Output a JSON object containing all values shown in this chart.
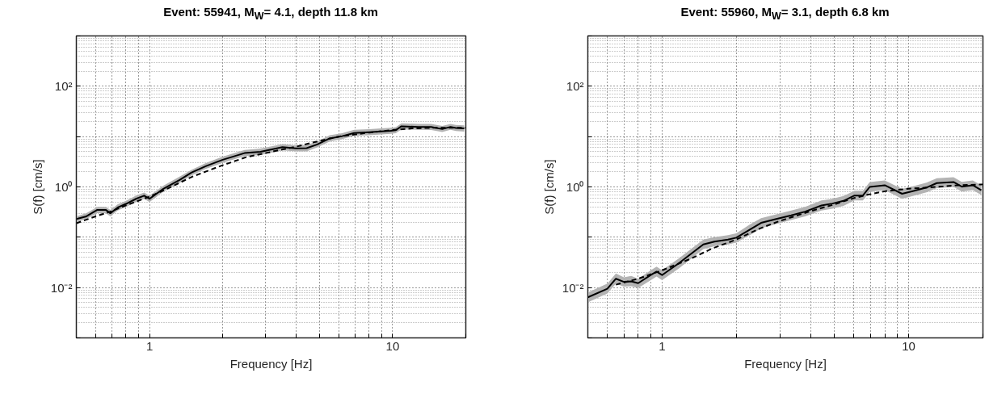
{
  "chart_data": [
    {
      "type": "line",
      "title": "Event: 55941, M$_{W}$= 4.1, depth 11.8 km",
      "xlabel": "Frequency [Hz]",
      "ylabel": "S(f) [cm/s]",
      "log": "xy",
      "grid": true,
      "xlim": [
        0.5,
        20
      ],
      "ylim": [
        0.001,
        1000
      ],
      "xticks": [
        {
          "value": 0.5,
          "label": null
        },
        {
          "value": 0.6,
          "label": null
        },
        {
          "value": 0.7,
          "label": null
        },
        {
          "value": 0.8,
          "label": null
        },
        {
          "value": 0.9,
          "label": null
        },
        1,
        {
          "value": 2,
          "label": null
        },
        {
          "value": 3,
          "label": null
        },
        {
          "value": 4,
          "label": null
        },
        {
          "value": 5,
          "label": null
        },
        {
          "value": 6,
          "label": null
        },
        {
          "value": 7,
          "label": null
        },
        {
          "value": 8,
          "label": null
        },
        {
          "value": 9,
          "label": null
        },
        10,
        {
          "value": 20,
          "label": null
        }
      ],
      "yticks": [
        {
          "value": 0.001,
          "label": null
        },
        {
          "value": 0.01,
          "label": "10⁻²"
        },
        {
          "value": 0.1,
          "label": null
        },
        {
          "value": 1,
          "label": "10⁰"
        },
        {
          "value": 10,
          "label": null
        },
        {
          "value": 100,
          "label": "10²"
        },
        {
          "value": 1000,
          "label": null
        }
      ],
      "series": [
        {
          "color": "#000000",
          "line_style": "solid",
          "x": [
            0.5,
            0.55,
            0.61,
            0.66,
            0.69,
            0.74,
            0.8,
            0.88,
            0.95,
            1.0,
            1.14,
            1.33,
            1.49,
            1.71,
            2.0,
            2.46,
            2.86,
            3.52,
            4.0,
            4.43,
            4.9,
            5.51,
            6.2,
            6.94,
            8.0,
            9.82,
            10.3,
            10.87,
            12.7,
            14.4,
            16.0,
            17.3,
            18.2,
            19.7
          ],
          "values": [
            0.23,
            0.26,
            0.35,
            0.35,
            0.3,
            0.39,
            0.46,
            0.58,
            0.67,
            0.58,
            0.92,
            1.38,
            1.94,
            2.6,
            3.46,
            4.7,
            5.0,
            6.15,
            5.86,
            5.9,
            7.0,
            9.2,
            10.2,
            11.8,
            12.2,
            13.0,
            13.4,
            16.0,
            15.6,
            15.5,
            14.1,
            15.6,
            14.8,
            14.5
          ],
          "lower": [
            0.2,
            0.23,
            0.3,
            0.3,
            0.26,
            0.34,
            0.4,
            0.5,
            0.58,
            0.5,
            0.8,
            1.2,
            1.7,
            2.3,
            3.0,
            4.1,
            4.3,
            5.3,
            5.1,
            5.1,
            6.1,
            8.0,
            8.9,
            10.3,
            10.6,
            11.3,
            11.7,
            13.9,
            13.6,
            13.5,
            12.3,
            13.6,
            12.9,
            12.6
          ],
          "upper": [
            0.26,
            0.3,
            0.4,
            0.4,
            0.35,
            0.45,
            0.53,
            0.67,
            0.77,
            0.67,
            1.06,
            1.6,
            2.2,
            3.0,
            4.0,
            5.4,
            5.8,
            7.1,
            6.7,
            6.8,
            8.0,
            10.6,
            11.7,
            13.6,
            14,
            15,
            15.4,
            18.4,
            17.9,
            17.8,
            16.2,
            17.9,
            17,
            16.7
          ]
        },
        {
          "color": "#000000",
          "line_style": "dashed",
          "x": [
            0.5,
            0.6,
            0.7,
            0.8,
            1.0,
            1.2,
            1.5,
            2.0,
            2.5,
            3.0,
            4.0,
            5.0,
            6.0,
            8.0,
            10.0,
            12.0,
            15.0,
            20.0
          ],
          "values": [
            0.19,
            0.26,
            0.33,
            0.43,
            0.64,
            0.95,
            1.6,
            2.7,
            3.9,
            4.7,
            6.3,
            8.2,
            10,
            12,
            13.5,
            14.5,
            15,
            15
          ]
        }
      ]
    },
    {
      "type": "line",
      "title": "Event: 55960, M$_{W}$= 3.1, depth 6.8 km",
      "xlabel": "Frequency [Hz]",
      "ylabel": "S(f) [cm/s]",
      "log": "xy",
      "grid": true,
      "xlim": [
        0.5,
        20
      ],
      "ylim": [
        0.001,
        1000
      ],
      "xticks": [
        {
          "value": 0.5,
          "label": null
        },
        {
          "value": 0.6,
          "label": null
        },
        {
          "value": 0.7,
          "label": null
        },
        {
          "value": 0.8,
          "label": null
        },
        {
          "value": 0.9,
          "label": null
        },
        1,
        {
          "value": 2,
          "label": null
        },
        {
          "value": 3,
          "label": null
        },
        {
          "value": 4,
          "label": null
        },
        {
          "value": 5,
          "label": null
        },
        {
          "value": 6,
          "label": null
        },
        {
          "value": 7,
          "label": null
        },
        {
          "value": 8,
          "label": null
        },
        {
          "value": 9,
          "label": null
        },
        10,
        {
          "value": 20,
          "label": null
        }
      ],
      "yticks": [
        {
          "value": 0.001,
          "label": null
        },
        {
          "value": 0.01,
          "label": "10⁻²"
        },
        {
          "value": 0.1,
          "label": null
        },
        {
          "value": 1,
          "label": "10⁰"
        },
        {
          "value": 10,
          "label": null
        },
        {
          "value": 100,
          "label": "10²"
        },
        {
          "value": 1000,
          "label": null
        }
      ],
      "series": [
        {
          "color": "#000000",
          "line_style": "solid",
          "x": [
            0.5,
            0.6,
            0.65,
            0.7,
            0.75,
            0.8,
            0.9,
            0.95,
            1.0,
            1.17,
            1.29,
            1.47,
            1.63,
            1.85,
            2.0,
            2.27,
            2.52,
            2.86,
            3.34,
            3.8,
            4.43,
            4.9,
            5.44,
            6.03,
            6.52,
            6.95,
            8.0,
            9.4,
            10.55,
            11.8,
            13.0,
            15.2,
            16.4,
            18.2,
            19.7
          ],
          "values": [
            0.0064,
            0.0095,
            0.015,
            0.013,
            0.0133,
            0.0122,
            0.0177,
            0.0207,
            0.0177,
            0.0305,
            0.044,
            0.072,
            0.082,
            0.09,
            0.098,
            0.142,
            0.193,
            0.226,
            0.272,
            0.323,
            0.428,
            0.467,
            0.528,
            0.674,
            0.674,
            1.0,
            1.08,
            0.73,
            0.84,
            0.97,
            1.19,
            1.25,
            1.01,
            1.08,
            0.86
          ],
          "lower": [
            0.0051,
            0.0076,
            0.012,
            0.0104,
            0.0106,
            0.0098,
            0.014,
            0.0166,
            0.014,
            0.024,
            0.035,
            0.058,
            0.066,
            0.072,
            0.078,
            0.11,
            0.15,
            0.18,
            0.22,
            0.26,
            0.34,
            0.37,
            0.42,
            0.54,
            0.54,
            0.8,
            0.86,
            0.58,
            0.67,
            0.78,
            0.95,
            1.0,
            0.81,
            0.86,
            0.69
          ],
          "upper": [
            0.008,
            0.012,
            0.019,
            0.016,
            0.017,
            0.015,
            0.022,
            0.026,
            0.022,
            0.038,
            0.055,
            0.09,
            0.1,
            0.11,
            0.12,
            0.18,
            0.24,
            0.28,
            0.34,
            0.4,
            0.54,
            0.58,
            0.66,
            0.84,
            0.84,
            1.25,
            1.35,
            0.91,
            1.05,
            1.21,
            1.49,
            1.56,
            1.26,
            1.35,
            1.08
          ]
        },
        {
          "color": "#000000",
          "line_style": "dashed",
          "x": [
            0.65,
            0.8,
            1.0,
            1.3,
            1.6,
            2.0,
            2.5,
            3.0,
            4.0,
            5.0,
            6.0,
            7.0,
            8.0,
            10.0,
            13.0,
            16.0,
            20.0
          ],
          "values": [
            0.0114,
            0.015,
            0.022,
            0.037,
            0.06,
            0.09,
            0.15,
            0.21,
            0.33,
            0.45,
            0.6,
            0.72,
            0.82,
            0.92,
            1.0,
            1.08,
            1.12
          ]
        }
      ]
    }
  ]
}
